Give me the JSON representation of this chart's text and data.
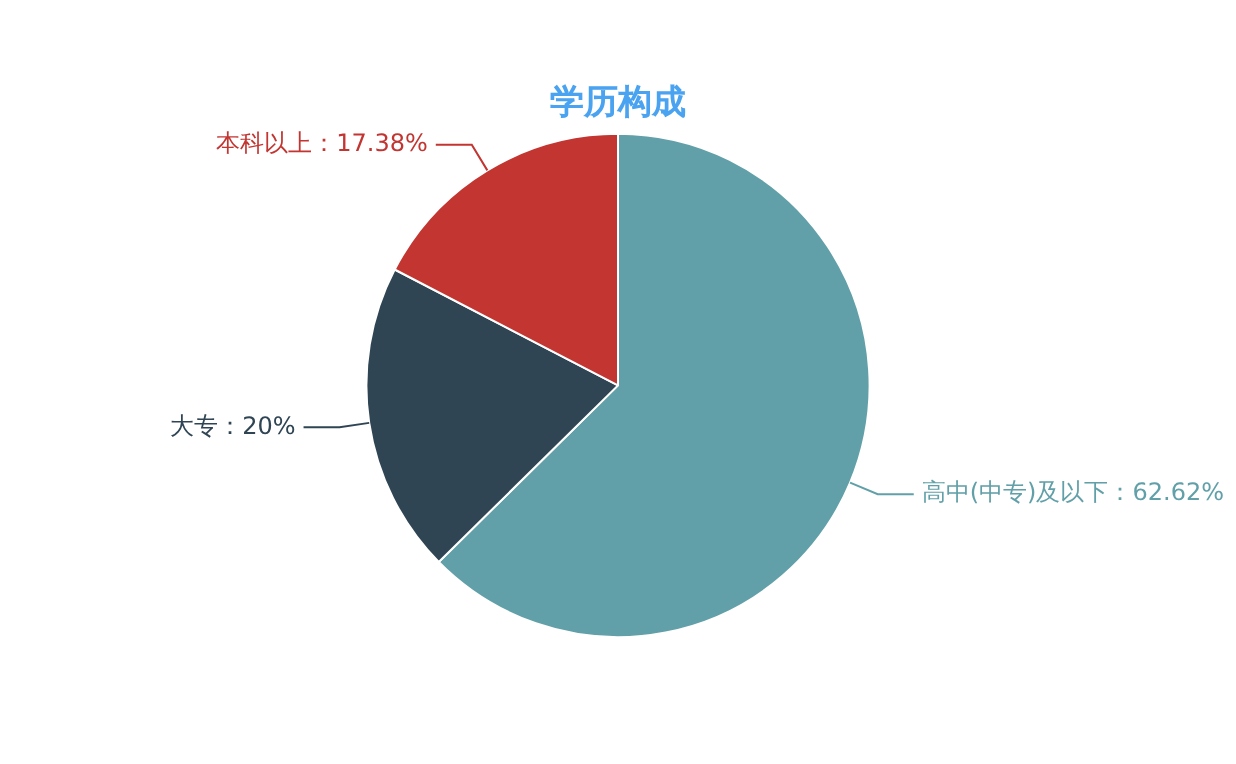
{
  "chart_data": {
    "type": "pie",
    "title": "学历构成",
    "categories": [
      "高中(中专)及以下",
      "大专",
      "本科以上"
    ],
    "values": [
      62.62,
      20,
      17.38
    ],
    "value_labels": [
      "62.62%",
      "20%",
      "17.38%"
    ],
    "colors": [
      "#61a0a8",
      "#2f4554",
      "#c23531"
    ],
    "legend": false
  }
}
